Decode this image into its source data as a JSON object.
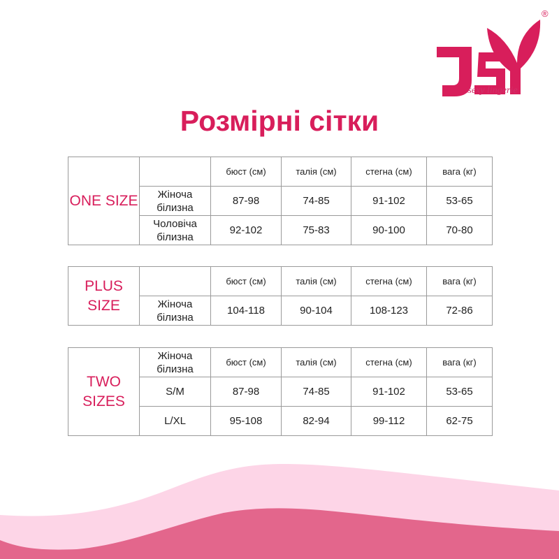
{
  "brand": {
    "logo_text": "JSY",
    "tagline": "sexy lingerie",
    "registered": "®",
    "color": "#d81e5b"
  },
  "title": "Розмірні сітки",
  "columns": [
    "бюст (см)",
    "талія (см)",
    "стегна (см)",
    "вага (кг)"
  ],
  "tables": [
    {
      "group": "ONE SIZE",
      "header_label": "",
      "rows": [
        {
          "label": "Жіноча білизна",
          "values": [
            "87-98",
            "74-85",
            "91-102",
            "53-65"
          ]
        },
        {
          "label": "Чоловіча білизна",
          "values": [
            "92-102",
            "75-83",
            "90-100",
            "70-80"
          ]
        }
      ]
    },
    {
      "group": "PLUS SIZE",
      "header_label": "",
      "rows": [
        {
          "label": "Жіноча білизна",
          "values": [
            "104-118",
            "90-104",
            "108-123",
            "72-86"
          ]
        }
      ]
    },
    {
      "group": "TWO SIZES",
      "header_label": "Жіноча білизна",
      "rows": [
        {
          "label": "S/M",
          "values": [
            "87-98",
            "74-85",
            "91-102",
            "53-65"
          ]
        },
        {
          "label": "L/XL",
          "values": [
            "95-108",
            "82-94",
            "99-112",
            "62-75"
          ]
        }
      ]
    }
  ],
  "colors": {
    "wave_light": "#fdd5e7",
    "wave_dark": "#e3668c"
  }
}
